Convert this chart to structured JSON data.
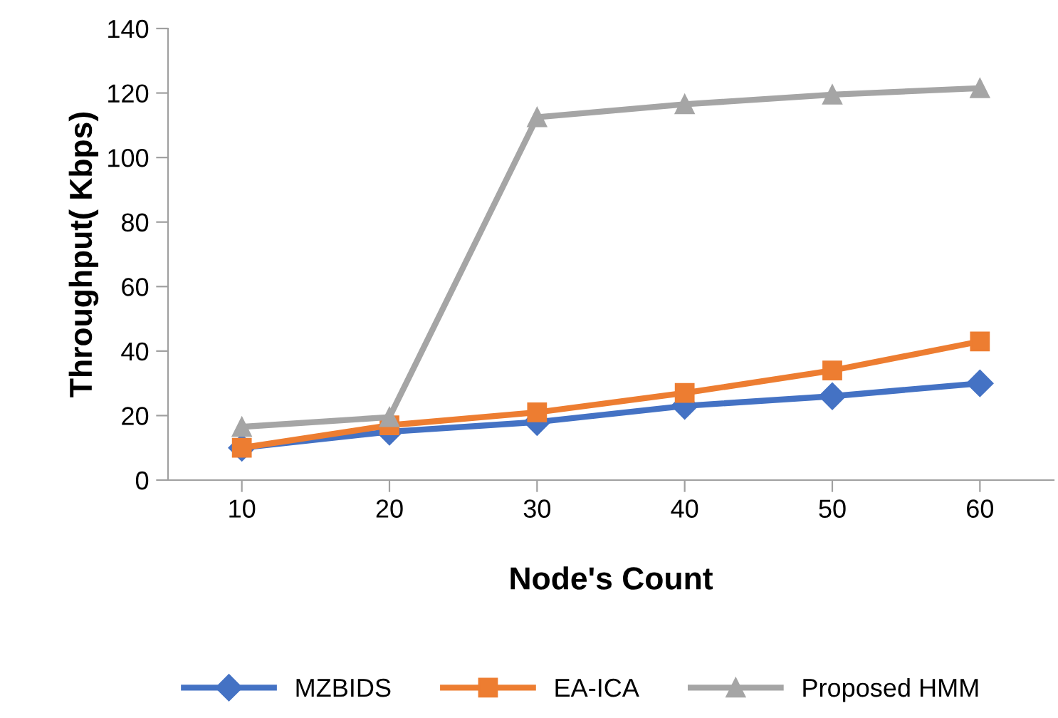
{
  "chart_data": {
    "type": "line",
    "xlabel": "Node's Count",
    "ylabel": "Throughput( Kbps)",
    "categories": [
      "10",
      "20",
      "30",
      "40",
      "50",
      "60"
    ],
    "series": [
      {
        "name": "MZBIDS",
        "color": "#4472c4",
        "marker": "diamond",
        "values": [
          10,
          15,
          18,
          23,
          26,
          30
        ]
      },
      {
        "name": "EA-ICA",
        "color": "#ed7d31",
        "marker": "square",
        "values": [
          10,
          17,
          21,
          27,
          34,
          43
        ]
      },
      {
        "name": "Proposed HMM",
        "color": "#a5a5a5",
        "marker": "triangle",
        "values": [
          16.5,
          19.5,
          112.5,
          116.5,
          119.5,
          121.5
        ]
      }
    ],
    "ylim": [
      0,
      140
    ],
    "yticks": [
      0,
      20,
      40,
      60,
      80,
      100,
      120,
      140
    ],
    "grid": false,
    "legend": "bottom",
    "line_style": "solid"
  }
}
